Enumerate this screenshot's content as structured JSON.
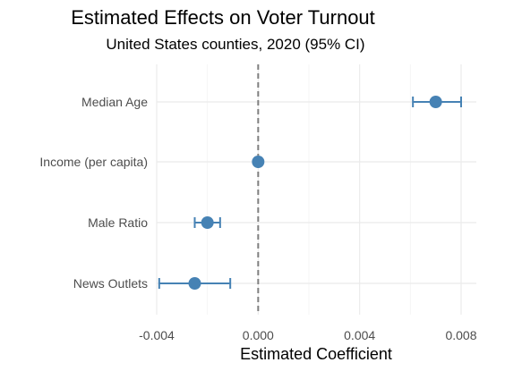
{
  "chart_data": {
    "type": "scatter",
    "title": "Estimated Effects on Voter Turnout",
    "subtitle": "United States counties, 2020 (95% CI)",
    "xlabel": "Estimated Coefficient",
    "ylabel": "",
    "xlim": [
      -0.004,
      0.0086
    ],
    "x_ticks": [
      -0.004,
      0.0,
      0.004,
      0.008
    ],
    "x_tick_labels": [
      "-0.004",
      "0.000",
      "0.004",
      "0.008"
    ],
    "reference_line": 0,
    "categories": [
      "Median Age",
      "Income (per capita)",
      "Male Ratio",
      "News Outlets"
    ],
    "estimates": [
      0.007,
      0.0,
      -0.002,
      -0.0025
    ],
    "ci_low": [
      0.0061,
      0.0,
      -0.0025,
      -0.0039
    ],
    "ci_high": [
      0.008,
      0.0,
      -0.0015,
      -0.0011
    ],
    "point_color": "#4682B4",
    "grid": true,
    "legend": "none"
  }
}
